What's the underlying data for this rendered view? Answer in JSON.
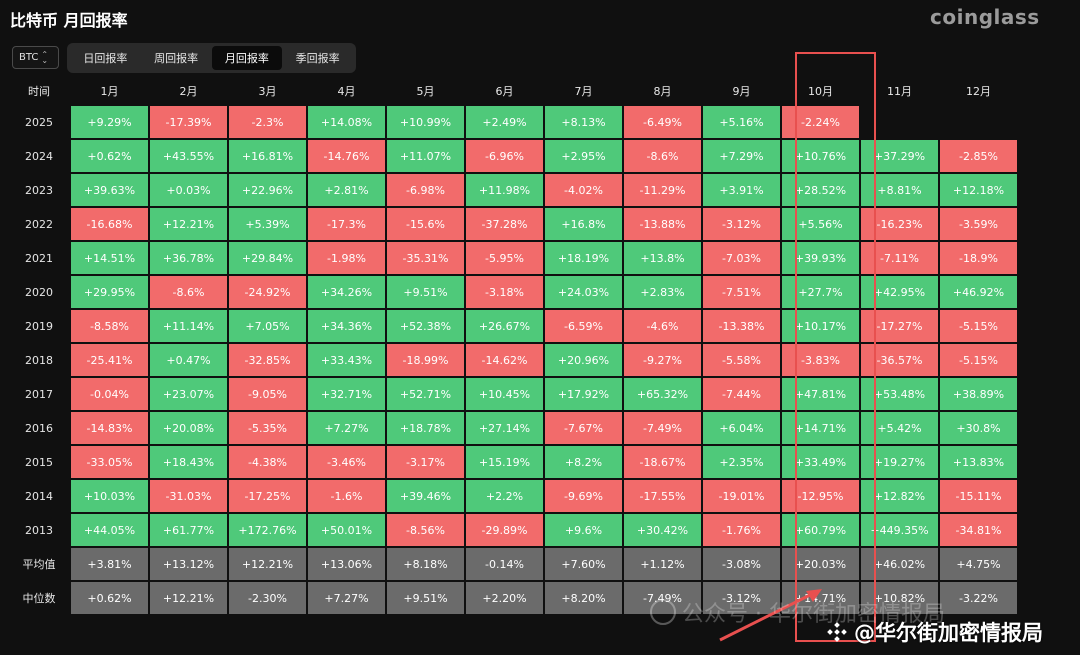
{
  "header": {
    "title": "比特币 月回报率",
    "brand": "coinglass",
    "asset": "BTC"
  },
  "tabs": [
    {
      "label": "日回报率",
      "active": false
    },
    {
      "label": "周回报率",
      "active": false
    },
    {
      "label": "月回报率",
      "active": true
    },
    {
      "label": "季回报率",
      "active": false
    }
  ],
  "table": {
    "corner": "时间",
    "months": [
      "1月",
      "2月",
      "3月",
      "4月",
      "5月",
      "6月",
      "7月",
      "8月",
      "9月",
      "10月",
      "11月",
      "12月"
    ],
    "rows": [
      {
        "year": "2025",
        "values": [
          "+9.29%",
          "-17.39%",
          "-2.3%",
          "+14.08%",
          "+10.99%",
          "+2.49%",
          "+8.13%",
          "-6.49%",
          "+5.16%",
          "-2.24%",
          "",
          ""
        ]
      },
      {
        "year": "2024",
        "values": [
          "+0.62%",
          "+43.55%",
          "+16.81%",
          "-14.76%",
          "+11.07%",
          "-6.96%",
          "+2.95%",
          "-8.6%",
          "+7.29%",
          "+10.76%",
          "+37.29%",
          "-2.85%"
        ]
      },
      {
        "year": "2023",
        "values": [
          "+39.63%",
          "+0.03%",
          "+22.96%",
          "+2.81%",
          "-6.98%",
          "+11.98%",
          "-4.02%",
          "-11.29%",
          "+3.91%",
          "+28.52%",
          "+8.81%",
          "+12.18%"
        ]
      },
      {
        "year": "2022",
        "values": [
          "-16.68%",
          "+12.21%",
          "+5.39%",
          "-17.3%",
          "-15.6%",
          "-37.28%",
          "+16.8%",
          "-13.88%",
          "-3.12%",
          "+5.56%",
          "-16.23%",
          "-3.59%"
        ]
      },
      {
        "year": "2021",
        "values": [
          "+14.51%",
          "+36.78%",
          "+29.84%",
          "-1.98%",
          "-35.31%",
          "-5.95%",
          "+18.19%",
          "+13.8%",
          "-7.03%",
          "+39.93%",
          "-7.11%",
          "-18.9%"
        ]
      },
      {
        "year": "2020",
        "values": [
          "+29.95%",
          "-8.6%",
          "-24.92%",
          "+34.26%",
          "+9.51%",
          "-3.18%",
          "+24.03%",
          "+2.83%",
          "-7.51%",
          "+27.7%",
          "+42.95%",
          "+46.92%"
        ]
      },
      {
        "year": "2019",
        "values": [
          "-8.58%",
          "+11.14%",
          "+7.05%",
          "+34.36%",
          "+52.38%",
          "+26.67%",
          "-6.59%",
          "-4.6%",
          "-13.38%",
          "+10.17%",
          "-17.27%",
          "-5.15%"
        ]
      },
      {
        "year": "2018",
        "values": [
          "-25.41%",
          "+0.47%",
          "-32.85%",
          "+33.43%",
          "-18.99%",
          "-14.62%",
          "+20.96%",
          "-9.27%",
          "-5.58%",
          "-3.83%",
          "-36.57%",
          "-5.15%"
        ]
      },
      {
        "year": "2017",
        "values": [
          "-0.04%",
          "+23.07%",
          "-9.05%",
          "+32.71%",
          "+52.71%",
          "+10.45%",
          "+17.92%",
          "+65.32%",
          "-7.44%",
          "+47.81%",
          "+53.48%",
          "+38.89%"
        ]
      },
      {
        "year": "2016",
        "values": [
          "-14.83%",
          "+20.08%",
          "-5.35%",
          "+7.27%",
          "+18.78%",
          "+27.14%",
          "-7.67%",
          "-7.49%",
          "+6.04%",
          "+14.71%",
          "+5.42%",
          "+30.8%"
        ]
      },
      {
        "year": "2015",
        "values": [
          "-33.05%",
          "+18.43%",
          "-4.38%",
          "-3.46%",
          "-3.17%",
          "+15.19%",
          "+8.2%",
          "-18.67%",
          "+2.35%",
          "+33.49%",
          "+19.27%",
          "+13.83%"
        ]
      },
      {
        "year": "2014",
        "values": [
          "+10.03%",
          "-31.03%",
          "-17.25%",
          "-1.6%",
          "+39.46%",
          "+2.2%",
          "-9.69%",
          "-17.55%",
          "-19.01%",
          "-12.95%",
          "+12.82%",
          "-15.11%"
        ]
      },
      {
        "year": "2013",
        "values": [
          "+44.05%",
          "+61.77%",
          "+172.76%",
          "+50.01%",
          "-8.56%",
          "-29.89%",
          "+9.6%",
          "+30.42%",
          "-1.76%",
          "+60.79%",
          "+449.35%",
          "-34.81%"
        ]
      }
    ],
    "stats": [
      {
        "label": "平均值",
        "values": [
          "+3.81%",
          "+13.12%",
          "+12.21%",
          "+13.06%",
          "+8.18%",
          "-0.14%",
          "+7.60%",
          "+1.12%",
          "-3.08%",
          "+20.03%",
          "+46.02%",
          "+4.75%"
        ]
      },
      {
        "label": "中位数",
        "values": [
          "+0.62%",
          "+12.21%",
          "-2.30%",
          "+7.27%",
          "+9.51%",
          "+2.20%",
          "+8.20%",
          "-7.49%",
          "-3.12%",
          "+14.71%",
          "+10.82%",
          "-3.22%"
        ]
      }
    ]
  },
  "colors": {
    "positive": "#4fc97a",
    "negative": "#f26b6b",
    "stat": "#6b6b6b",
    "highlight": "#e8504f"
  },
  "watermarks": {
    "faint": "公众号 · 华尔街加密情报局",
    "bold": "@华尔街加密情报局"
  }
}
